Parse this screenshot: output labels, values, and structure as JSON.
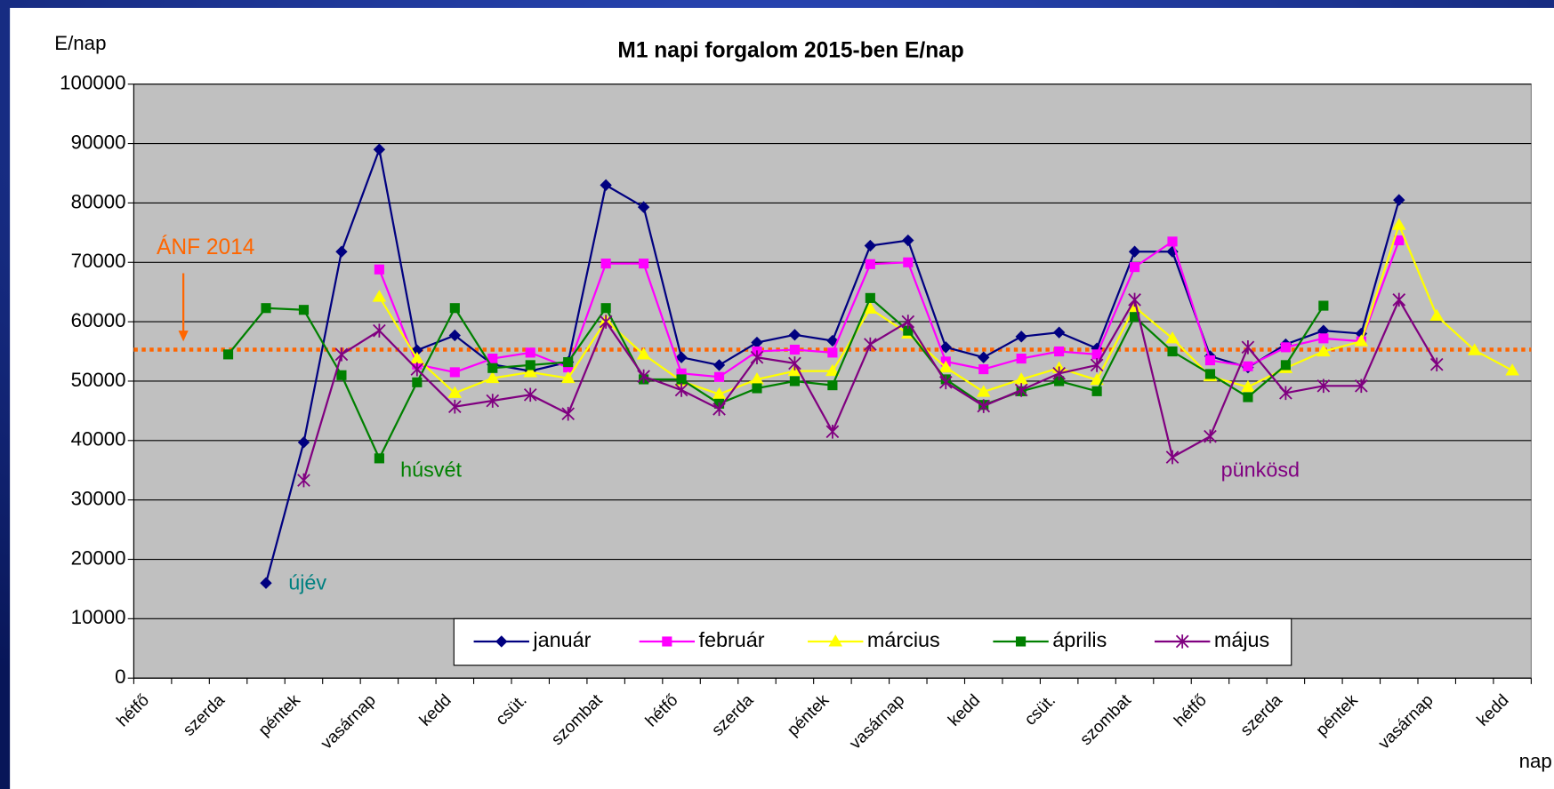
{
  "chart_data": {
    "type": "line",
    "title": "M1 napi forgalom 2015-ben E/nap",
    "y_label": "E/nap",
    "x_label": "nap",
    "categories": [
      "hétfő",
      null,
      "szerda",
      null,
      "péntek",
      null,
      "vasárnap",
      null,
      "kedd",
      null,
      "csüt.",
      null,
      "szombat",
      null,
      "hétfő",
      null,
      "szerda",
      null,
      "péntek",
      null,
      "vasárnap",
      null,
      "kedd",
      null,
      "csüt.",
      null,
      "szombat",
      null,
      "hétfő",
      null,
      "szerda",
      null,
      "péntek",
      null,
      "vasárnap",
      null,
      "kedd"
    ],
    "ylim": [
      0,
      100000
    ],
    "yticks": [
      0,
      10000,
      20000,
      30000,
      40000,
      50000,
      60000,
      70000,
      80000,
      90000,
      100000
    ],
    "grid": true,
    "reference_line": {
      "value": 55300,
      "label": "ÁNF 2014",
      "color": "#ff6600"
    },
    "annotations": [
      "újév",
      "húsvét",
      "pünkösd"
    ],
    "legend": "bottom",
    "series": [
      {
        "name": "január",
        "color": "#000080",
        "marker": "diamond",
        "values": [
          null,
          null,
          null,
          16000,
          39700,
          71800,
          89000,
          55200,
          57700,
          52800,
          51700,
          53200,
          83000,
          79300,
          54000,
          52700,
          56500,
          57800,
          56800,
          72800,
          73700,
          55700,
          54000,
          57500,
          58200,
          55500,
          71800,
          71800,
          54200,
          52300,
          56200,
          58500,
          58000,
          80500,
          null,
          null,
          null
        ]
      },
      {
        "name": "február",
        "color": "#ff00ff",
        "marker": "square",
        "values": [
          null,
          null,
          null,
          null,
          null,
          null,
          68800,
          52800,
          51500,
          53800,
          54800,
          52300,
          69800,
          69800,
          51300,
          50700,
          55000,
          55300,
          54800,
          69700,
          70000,
          53300,
          52000,
          53800,
          55000,
          54500,
          69200,
          73500,
          53500,
          52500,
          55700,
          57200,
          56700,
          73700,
          null,
          null,
          null
        ]
      },
      {
        "name": "március",
        "color": "#ffff00",
        "marker": "triangle",
        "values": [
          null,
          null,
          null,
          null,
          null,
          null,
          64200,
          53800,
          48000,
          50500,
          51500,
          50500,
          60200,
          54500,
          50000,
          47800,
          50300,
          51700,
          51700,
          62200,
          58000,
          52300,
          48200,
          50300,
          52200,
          50200,
          62500,
          57200,
          50800,
          49000,
          52200,
          55000,
          56700,
          76300,
          61000,
          55200,
          51800
        ]
      },
      {
        "name": "április",
        "color": "#008000",
        "marker": "square",
        "values": [
          null,
          null,
          54500,
          62300,
          62000,
          51000,
          37000,
          49800,
          62300,
          52200,
          52700,
          53200,
          62300,
          50300,
          50300,
          46200,
          48800,
          50000,
          49300,
          64000,
          58500,
          50300,
          46000,
          48300,
          50000,
          48300,
          60800,
          55000,
          51200,
          47300,
          52700,
          62700,
          null,
          null,
          null,
          null,
          null
        ]
      },
      {
        "name": "május",
        "color": "#800080",
        "marker": "star",
        "values": [
          null,
          null,
          null,
          null,
          33300,
          54500,
          58500,
          52000,
          45700,
          46700,
          47700,
          44500,
          60000,
          50800,
          48500,
          45300,
          54000,
          53000,
          41500,
          56200,
          60000,
          49800,
          45800,
          48500,
          51300,
          52700,
          63700,
          37200,
          40700,
          55700,
          48000,
          49200,
          49200,
          63700,
          52800,
          null,
          null
        ]
      }
    ]
  }
}
